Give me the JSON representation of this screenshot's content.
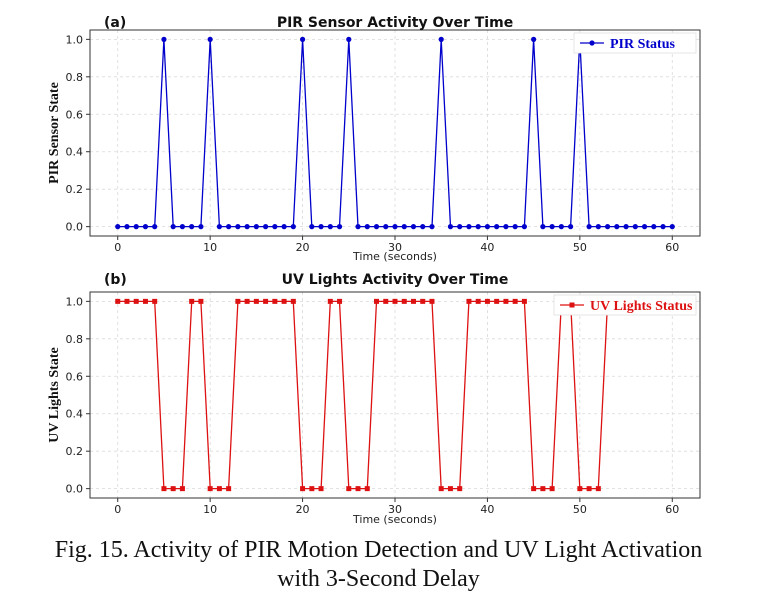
{
  "caption": {
    "line1": "Fig. 15. Activity of PIR Motion Detection and UV Light Activation",
    "line2": "with 3-Second Delay"
  },
  "chart_data": [
    {
      "type": "line",
      "panel_label": "(a)",
      "title": "PIR Sensor Activity Over Time",
      "xlabel": "Time (seconds)",
      "ylabel": "PIR Sensor State",
      "xlim": [
        -3,
        63
      ],
      "ylim": [
        -0.05,
        1.05
      ],
      "xticks": [
        0,
        10,
        20,
        30,
        40,
        50,
        60
      ],
      "yticks": [
        0.0,
        0.2,
        0.4,
        0.6,
        0.8,
        1.0
      ],
      "ytick_labels": [
        "0.0",
        "0.2",
        "0.4",
        "0.6",
        "0.8",
        "1.0"
      ],
      "grid": true,
      "legend_position": "top-right",
      "series": [
        {
          "name": "PIR Status",
          "color": "#0000cc",
          "marker": "circle",
          "x": [
            0,
            1,
            2,
            3,
            4,
            5,
            6,
            7,
            8,
            9,
            10,
            11,
            12,
            13,
            14,
            15,
            16,
            17,
            18,
            19,
            20,
            21,
            22,
            23,
            24,
            25,
            26,
            27,
            28,
            29,
            30,
            31,
            32,
            33,
            34,
            35,
            36,
            37,
            38,
            39,
            40,
            41,
            42,
            43,
            44,
            45,
            46,
            47,
            48,
            49,
            50,
            51,
            52,
            53,
            54,
            55,
            56,
            57,
            58,
            59,
            60
          ],
          "y": [
            0,
            0,
            0,
            0,
            0,
            1,
            0,
            0,
            0,
            0,
            1,
            0,
            0,
            0,
            0,
            0,
            0,
            0,
            0,
            0,
            1,
            0,
            0,
            0,
            0,
            1,
            0,
            0,
            0,
            0,
            0,
            0,
            0,
            0,
            0,
            1,
            0,
            0,
            0,
            0,
            0,
            0,
            0,
            0,
            0,
            1,
            0,
            0,
            0,
            0,
            1,
            0,
            0,
            0,
            0,
            0,
            0,
            0,
            0,
            0,
            0
          ]
        }
      ]
    },
    {
      "type": "line",
      "panel_label": "(b)",
      "title": "UV Lights Activity Over Time",
      "xlabel": "Time (seconds)",
      "ylabel": "UV Lights State",
      "xlim": [
        -3,
        63
      ],
      "ylim": [
        -0.05,
        1.05
      ],
      "xticks": [
        0,
        10,
        20,
        30,
        40,
        50,
        60
      ],
      "yticks": [
        0.0,
        0.2,
        0.4,
        0.6,
        0.8,
        1.0
      ],
      "ytick_labels": [
        "0.0",
        "0.2",
        "0.4",
        "0.6",
        "0.8",
        "1.0"
      ],
      "grid": true,
      "legend_position": "top-right",
      "series": [
        {
          "name": "UV Lights Status",
          "color": "#dd1111",
          "marker": "square",
          "x": [
            0,
            1,
            2,
            3,
            4,
            5,
            6,
            7,
            8,
            9,
            10,
            11,
            12,
            13,
            14,
            15,
            16,
            17,
            18,
            19,
            20,
            21,
            22,
            23,
            24,
            25,
            26,
            27,
            28,
            29,
            30,
            31,
            32,
            33,
            34,
            35,
            36,
            37,
            38,
            39,
            40,
            41,
            42,
            43,
            44,
            45,
            46,
            47,
            48,
            49,
            50,
            51,
            52,
            53
          ],
          "y": [
            1,
            1,
            1,
            1,
            1,
            0,
            0,
            0,
            1,
            1,
            0,
            0,
            0,
            1,
            1,
            1,
            1,
            1,
            1,
            1,
            0,
            0,
            0,
            1,
            1,
            0,
            0,
            0,
            1,
            1,
            1,
            1,
            1,
            1,
            1,
            0,
            0,
            0,
            1,
            1,
            1,
            1,
            1,
            1,
            1,
            0,
            0,
            0,
            1,
            1,
            0,
            0,
            0,
            1
          ]
        }
      ]
    }
  ]
}
